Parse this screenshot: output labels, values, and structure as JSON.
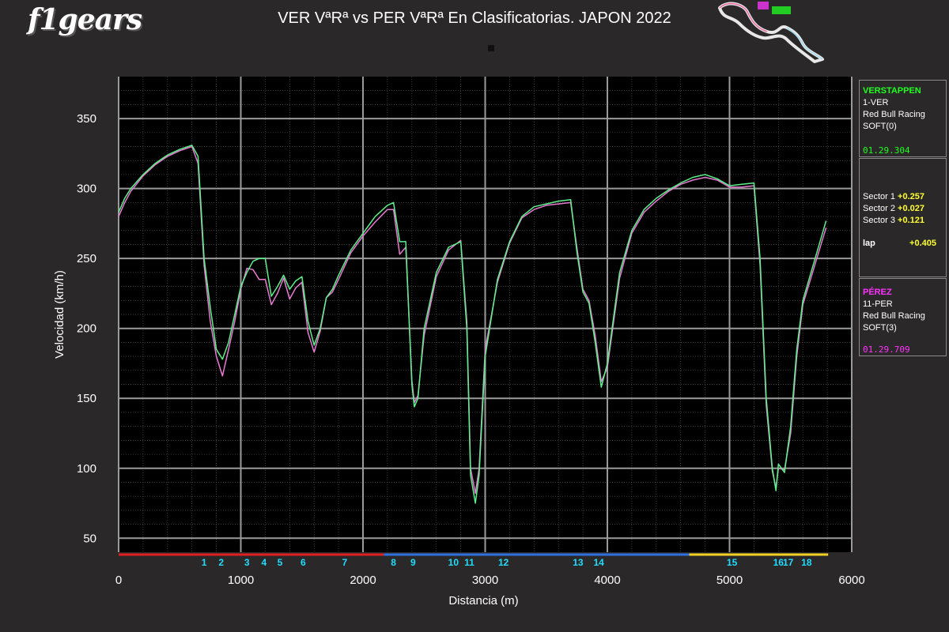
{
  "logo_text": "f1gears",
  "title": "VER VªRª vs PER VªRª En Clasificatorias. JAPON 2022",
  "colors": {
    "ver": "#5ef08a",
    "per": "#e77ad2",
    "ver_label": "#20ff20",
    "per_label": "#ff33ff",
    "delta": "#ffff33",
    "corner_label": "#22ddff",
    "sector1": "#e02020",
    "sector2": "#2f6fe0",
    "sector3": "#f0d020"
  },
  "panels": {
    "ver": {
      "name": "VERSTAPPEN",
      "code": "1-VER",
      "team": "Red Bull Racing",
      "tyre": "SOFT(0)",
      "time": "01.29.304"
    },
    "deltas": {
      "s1_label": "Sector 1",
      "s1_value": "+0.257",
      "s2_label": "Sector 2",
      "s2_value": "+0.027",
      "s3_label": "Sector 3",
      "s3_value": "+0.121",
      "lap_label": "lap",
      "lap_value": "+0.405"
    },
    "per": {
      "name": "PÉREZ",
      "code": "11-PER",
      "team": "Red Bull Racing",
      "tyre": "SOFT(3)",
      "time": "01.29.709"
    }
  },
  "chart_data": {
    "type": "line",
    "xlabel": "Distancia (m)",
    "ylabel": "Velocidad (km/h)",
    "xlim": [
      0,
      6000
    ],
    "ylim": [
      40,
      380
    ],
    "xticks": [
      0,
      1000,
      2000,
      3000,
      4000,
      5000,
      6000
    ],
    "yticks": [
      50,
      100,
      150,
      200,
      250,
      300,
      350
    ],
    "grid": true,
    "series": [
      {
        "name": "VER",
        "x": [
          0,
          50,
          100,
          200,
          300,
          400,
          500,
          600,
          650,
          700,
          750,
          800,
          850,
          900,
          950,
          1000,
          1050,
          1100,
          1150,
          1200,
          1250,
          1300,
          1350,
          1400,
          1450,
          1500,
          1550,
          1600,
          1650,
          1700,
          1750,
          1800,
          1900,
          2000,
          2100,
          2200,
          2250,
          2300,
          2350,
          2400,
          2420,
          2450,
          2500,
          2600,
          2700,
          2800,
          2850,
          2880,
          2920,
          2950,
          3000,
          3100,
          3200,
          3300,
          3400,
          3500,
          3600,
          3700,
          3750,
          3800,
          3850,
          3900,
          3950,
          4000,
          4100,
          4200,
          4300,
          4400,
          4500,
          4600,
          4700,
          4800,
          4900,
          5000,
          5100,
          5200,
          5250,
          5300,
          5350,
          5380,
          5400,
          5450,
          5500,
          5550,
          5600,
          5700,
          5790
        ],
        "values": [
          283,
          293,
          300,
          310,
          318,
          324,
          328,
          331,
          323,
          250,
          215,
          185,
          178,
          190,
          210,
          230,
          240,
          248,
          250,
          250,
          223,
          230,
          238,
          228,
          234,
          237,
          205,
          188,
          200,
          222,
          228,
          238,
          256,
          268,
          280,
          288,
          290,
          262,
          262,
          160,
          144,
          150,
          200,
          240,
          258,
          262,
          200,
          95,
          75,
          95,
          180,
          235,
          262,
          280,
          287,
          289,
          291,
          292,
          255,
          226,
          218,
          190,
          158,
          175,
          240,
          270,
          285,
          293,
          299,
          304,
          308,
          310,
          307,
          302,
          303,
          304,
          250,
          150,
          100,
          84,
          103,
          97,
          130,
          185,
          220,
          250,
          277
        ]
      },
      {
        "name": "PER",
        "x": [
          0,
          50,
          100,
          200,
          300,
          400,
          500,
          600,
          650,
          700,
          750,
          800,
          850,
          900,
          950,
          1000,
          1050,
          1100,
          1150,
          1200,
          1250,
          1300,
          1350,
          1400,
          1450,
          1500,
          1550,
          1600,
          1650,
          1700,
          1750,
          1800,
          1900,
          2000,
          2100,
          2200,
          2250,
          2300,
          2350,
          2400,
          2420,
          2450,
          2500,
          2600,
          2700,
          2800,
          2850,
          2880,
          2920,
          2950,
          3000,
          3100,
          3200,
          3300,
          3400,
          3500,
          3600,
          3700,
          3750,
          3800,
          3850,
          3900,
          3950,
          4000,
          4100,
          4200,
          4300,
          4400,
          4500,
          4600,
          4700,
          4800,
          4900,
          5000,
          5100,
          5200,
          5250,
          5300,
          5350,
          5380,
          5400,
          5450,
          5500,
          5550,
          5600,
          5700,
          5790
        ],
        "values": [
          280,
          290,
          298,
          309,
          317,
          323,
          327,
          330,
          318,
          245,
          205,
          180,
          166,
          185,
          205,
          228,
          243,
          242,
          235,
          235,
          217,
          225,
          236,
          221,
          229,
          233,
          197,
          183,
          198,
          222,
          226,
          235,
          254,
          266,
          276,
          285,
          285,
          253,
          258,
          163,
          147,
          152,
          195,
          237,
          256,
          263,
          205,
          100,
          82,
          100,
          185,
          233,
          261,
          279,
          285,
          288,
          289,
          290,
          258,
          228,
          220,
          195,
          162,
          172,
          236,
          268,
          283,
          291,
          298,
          303,
          306,
          308,
          306,
          301,
          301,
          302,
          245,
          145,
          98,
          86,
          100,
          99,
          125,
          180,
          217,
          246,
          272
        ]
      }
    ],
    "corners": [
      {
        "label": "1",
        "x": 700
      },
      {
        "label": "2",
        "x": 840
      },
      {
        "label": "3",
        "x": 1050
      },
      {
        "label": "4",
        "x": 1190
      },
      {
        "label": "5",
        "x": 1320
      },
      {
        "label": "6",
        "x": 1510
      },
      {
        "label": "7",
        "x": 1850
      },
      {
        "label": "8",
        "x": 2250
      },
      {
        "label": "9",
        "x": 2410
      },
      {
        "label": "10",
        "x": 2740
      },
      {
        "label": "11",
        "x": 2870
      },
      {
        "label": "12",
        "x": 3150
      },
      {
        "label": "13",
        "x": 3760
      },
      {
        "label": "14",
        "x": 3930
      },
      {
        "label": "15",
        "x": 5020
      },
      {
        "label": "16",
        "x": 5400
      },
      {
        "label": "17",
        "x": 5480
      },
      {
        "label": "18",
        "x": 5630
      }
    ],
    "sectors": [
      {
        "name": "S1",
        "start": 0,
        "end": 2170,
        "color": "#e02020"
      },
      {
        "name": "S2",
        "start": 2170,
        "end": 4670,
        "color": "#2f6fe0"
      },
      {
        "name": "S3",
        "start": 4670,
        "end": 5807,
        "color": "#f0d020"
      }
    ]
  }
}
